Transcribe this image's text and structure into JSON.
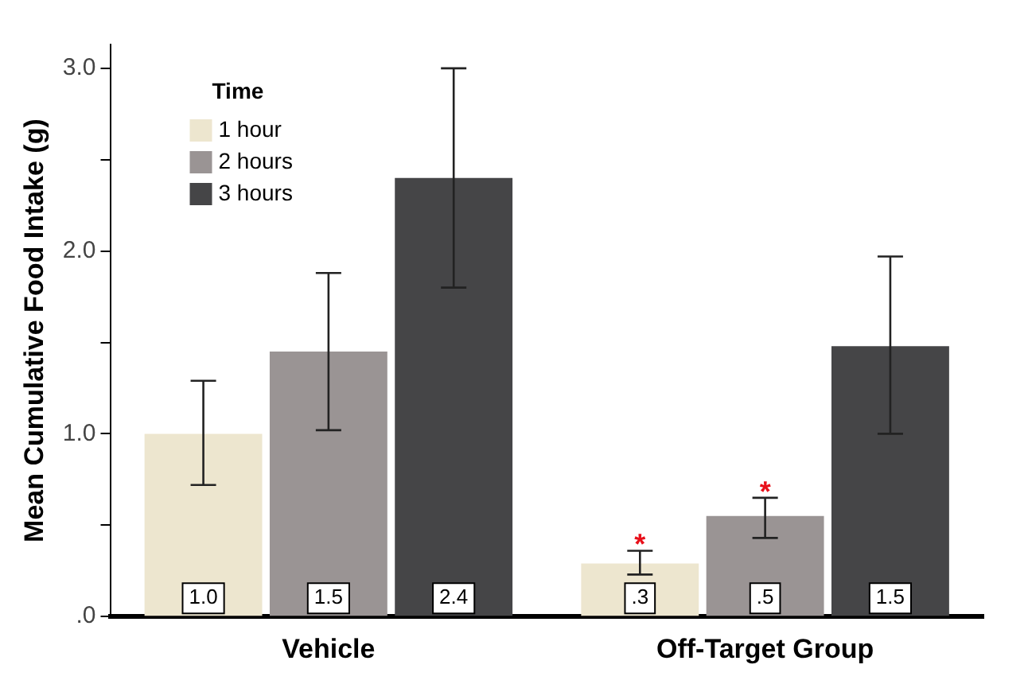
{
  "chart_data": {
    "type": "bar",
    "ylabel": "Mean Cumulative Food Intake (g)",
    "legend_title": "Time",
    "legend": "top left",
    "grid": false,
    "categories": [
      "Vehicle",
      "Off-Target Group"
    ],
    "series": [
      {
        "name": "1 hour",
        "color": "#ede6cf",
        "values": [
          1.0,
          0.29
        ],
        "errors": [
          [
            0.72,
            1.29
          ],
          [
            0.23,
            0.36
          ]
        ],
        "value_labels": [
          "1.0",
          ".3"
        ]
      },
      {
        "name": "2 hours",
        "color": "#9a9494",
        "values": [
          1.45,
          0.55
        ],
        "errors": [
          [
            1.02,
            1.88
          ],
          [
            0.43,
            0.65
          ]
        ],
        "value_labels": [
          "1.5",
          ".5"
        ]
      },
      {
        "name": "3 hours",
        "color": "#454547",
        "values": [
          2.4,
          1.48
        ],
        "errors": [
          [
            1.8,
            3.0
          ],
          [
            1.0,
            1.97
          ]
        ],
        "value_labels": [
          "2.4",
          "1.5"
        ]
      }
    ],
    "ylim": [
      0,
      3.13
    ],
    "yticks": [
      {
        "value": 0,
        "label": ".0"
      },
      {
        "value": 0.5,
        "label": null
      },
      {
        "value": 1,
        "label": "1.0"
      },
      {
        "value": 1.5,
        "label": null
      },
      {
        "value": 2,
        "label": "2.0"
      },
      {
        "value": 2.5,
        "label": null
      },
      {
        "value": 3,
        "label": "3.0"
      }
    ],
    "annotations": [
      "*",
      "*"
    ]
  }
}
